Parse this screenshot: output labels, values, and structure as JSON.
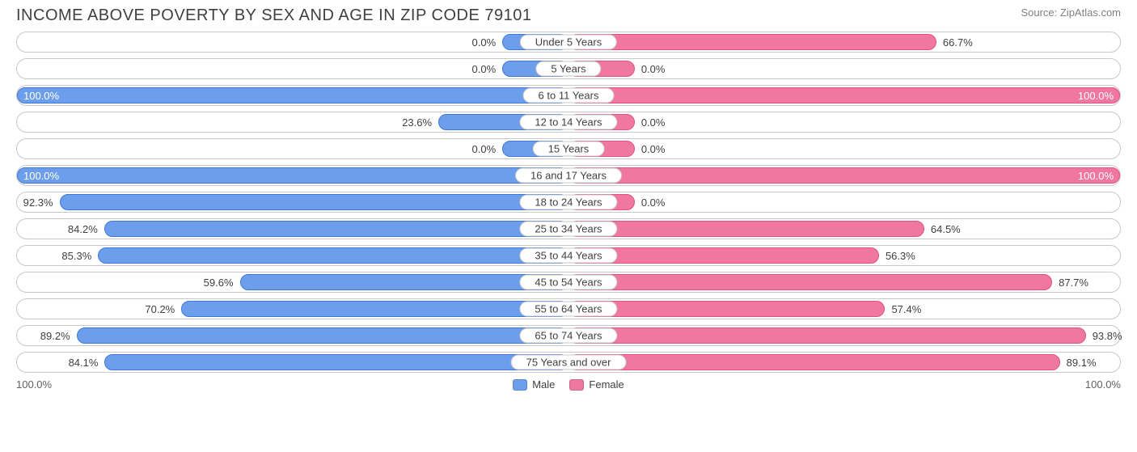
{
  "title": "INCOME ABOVE POVERTY BY SEX AND AGE IN ZIP CODE 79101",
  "source": "Source: ZipAtlas.com",
  "axis": {
    "left": "100.0%",
    "right": "100.0%"
  },
  "legend": {
    "male": "Male",
    "female": "Female"
  },
  "colors": {
    "male_fill": "#6d9eeb",
    "male_border": "#3c78d8",
    "female_fill": "#f078a0",
    "female_border": "#e05080",
    "row_border": "#c8c8c8",
    "text": "#404040",
    "bg": "#ffffff"
  },
  "min_bar_pct": 12,
  "label_center_offset_pct": 12,
  "rows": [
    {
      "category": "Under 5 Years",
      "male": 0.0,
      "female": 66.7,
      "male_label": "0.0%",
      "female_label": "66.7%"
    },
    {
      "category": "5 Years",
      "male": 0.0,
      "female": 0.0,
      "male_label": "0.0%",
      "female_label": "0.0%"
    },
    {
      "category": "6 to 11 Years",
      "male": 100.0,
      "female": 100.0,
      "male_label": "100.0%",
      "female_label": "100.0%"
    },
    {
      "category": "12 to 14 Years",
      "male": 23.6,
      "female": 0.0,
      "male_label": "23.6%",
      "female_label": "0.0%"
    },
    {
      "category": "15 Years",
      "male": 0.0,
      "female": 0.0,
      "male_label": "0.0%",
      "female_label": "0.0%"
    },
    {
      "category": "16 and 17 Years",
      "male": 100.0,
      "female": 100.0,
      "male_label": "100.0%",
      "female_label": "100.0%"
    },
    {
      "category": "18 to 24 Years",
      "male": 92.3,
      "female": 0.0,
      "male_label": "92.3%",
      "female_label": "0.0%"
    },
    {
      "category": "25 to 34 Years",
      "male": 84.2,
      "female": 64.5,
      "male_label": "84.2%",
      "female_label": "64.5%"
    },
    {
      "category": "35 to 44 Years",
      "male": 85.3,
      "female": 56.3,
      "male_label": "85.3%",
      "female_label": "56.3%"
    },
    {
      "category": "45 to 54 Years",
      "male": 59.6,
      "female": 87.7,
      "male_label": "59.6%",
      "female_label": "87.7%"
    },
    {
      "category": "55 to 64 Years",
      "male": 70.2,
      "female": 57.4,
      "male_label": "70.2%",
      "female_label": "57.4%"
    },
    {
      "category": "65 to 74 Years",
      "male": 89.2,
      "female": 93.8,
      "male_label": "89.2%",
      "female_label": "93.8%"
    },
    {
      "category": "75 Years and over",
      "male": 84.1,
      "female": 89.1,
      "male_label": "84.1%",
      "female_label": "89.1%"
    }
  ]
}
